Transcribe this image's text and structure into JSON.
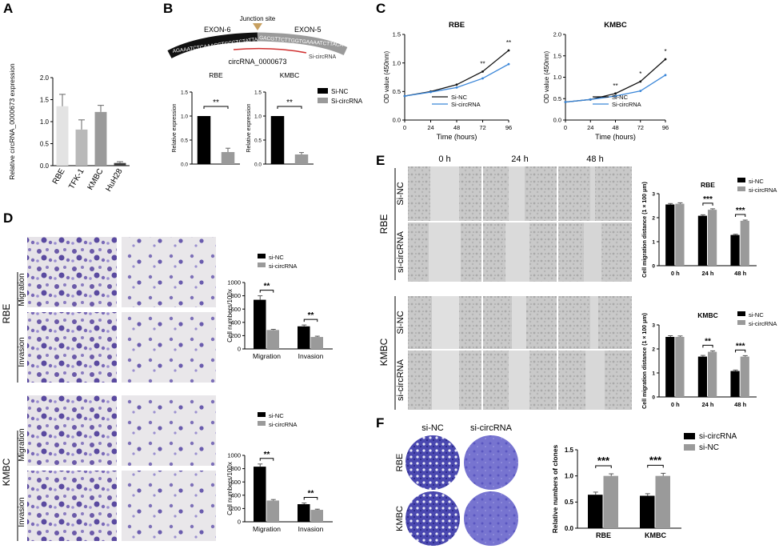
{
  "panel_labels": [
    "A",
    "B",
    "C",
    "D",
    "E",
    "F"
  ],
  "chart_data": [
    {
      "id": "A",
      "type": "bar",
      "categories": [
        "RBE",
        "TFK-1",
        "KMBC",
        "HuH28"
      ],
      "values": [
        1.35,
        0.82,
        1.22,
        0.06
      ],
      "errors": [
        0.27,
        0.22,
        0.15,
        0.03
      ],
      "ylabel": "Relative circRNA_0000673 expression",
      "ylim": [
        0,
        2.0
      ],
      "yticks": [
        "0.0",
        "0.5",
        "1.0",
        "1.5",
        "2.0"
      ],
      "colors": [
        "#e3e3e3",
        "#b9b9b9",
        "#9a9a9a",
        "#3a3a3a"
      ]
    },
    {
      "id": "B-RBE",
      "type": "bar",
      "title": "RBE",
      "categories": [
        "Si-NC",
        "Si-circRNA"
      ],
      "values": [
        1.0,
        0.25
      ],
      "errors": [
        0,
        0.08
      ],
      "ylabel": "Relative expression",
      "ylim": [
        0,
        1.5
      ],
      "yticks": [
        "0.0",
        "0.5",
        "1.0",
        "1.5"
      ],
      "sig": "**"
    },
    {
      "id": "B-KMBC",
      "type": "bar",
      "title": "KMBC",
      "categories": [
        "Si-NC",
        "Si-circRNA"
      ],
      "values": [
        1.0,
        0.2
      ],
      "errors": [
        0,
        0.04
      ],
      "ylabel": "Relative expression",
      "ylim": [
        0,
        1.5
      ],
      "yticks": [
        "0.0",
        "0.5",
        "1.0",
        "1.5"
      ],
      "sig": "**"
    },
    {
      "id": "C-RBE",
      "type": "line",
      "title": "RBE",
      "x": [
        0,
        24,
        48,
        72,
        96
      ],
      "series": [
        {
          "name": "Si-NC",
          "values": [
            0.42,
            0.5,
            0.62,
            0.85,
            1.22
          ],
          "color": "#111111"
        },
        {
          "name": "Si-circRNA",
          "values": [
            0.42,
            0.49,
            0.57,
            0.73,
            0.98
          ],
          "color": "#3a86d8"
        }
      ],
      "stars": [
        "",
        "",
        "",
        "**",
        "**"
      ],
      "xlabel": "Time (hours)",
      "ylabel": "OD value (450nm)",
      "ylim": [
        0,
        1.5
      ],
      "yticks": [
        "0.0",
        "0.5",
        "1.0",
        "1.5"
      ],
      "xticks": [
        "0",
        "24",
        "48",
        "72",
        "96"
      ]
    },
    {
      "id": "C-KMBC",
      "type": "line",
      "title": "KMBC",
      "x": [
        0,
        24,
        48,
        72,
        96
      ],
      "series": [
        {
          "name": "Si-NC",
          "values": [
            0.42,
            0.48,
            0.62,
            0.9,
            1.42
          ],
          "color": "#111111"
        },
        {
          "name": "Si-circRNA",
          "values": [
            0.42,
            0.48,
            0.56,
            0.68,
            1.05
          ],
          "color": "#3a86d8"
        }
      ],
      "stars": [
        "",
        "",
        "**",
        "*",
        "*"
      ],
      "xlabel": "Time (hours)",
      "ylabel": "OD value (450nm)",
      "ylim": [
        0,
        2.0
      ],
      "yticks": [
        "0.0",
        "0.5",
        "1.0",
        "1.5",
        "2.0"
      ],
      "xticks": [
        "0",
        "24",
        "48",
        "72",
        "96"
      ]
    },
    {
      "id": "D-RBE",
      "type": "bar",
      "categories": [
        "Migration",
        "Invasion"
      ],
      "series": [
        {
          "name": "si-NC",
          "values": [
            740,
            340
          ],
          "errors": [
            60,
            20
          ],
          "color": "#000000"
        },
        {
          "name": "si-circRNA",
          "values": [
            285,
            180
          ],
          "errors": [
            10,
            12
          ],
          "color": "#9a9a9a"
        }
      ],
      "stars": [
        "**",
        "**"
      ],
      "ylabel": "Cell numbers/100x",
      "ylim": [
        0,
        1000
      ],
      "yticks": [
        "0",
        "200",
        "400",
        "600",
        "800",
        "1000"
      ]
    },
    {
      "id": "D-KMBC",
      "type": "bar",
      "categories": [
        "Migration",
        "Invasion"
      ],
      "series": [
        {
          "name": "si-NC",
          "values": [
            830,
            265
          ],
          "errors": [
            40,
            18
          ],
          "color": "#000000"
        },
        {
          "name": "si-circRNA",
          "values": [
            320,
            180
          ],
          "errors": [
            15,
            10
          ],
          "color": "#9a9a9a"
        }
      ],
      "stars": [
        "**",
        "**"
      ],
      "ylabel": "Cell numbers/100x",
      "ylim": [
        0,
        1000
      ],
      "yticks": [
        "0",
        "200",
        "400",
        "600",
        "800",
        "1000"
      ]
    },
    {
      "id": "E-RBE",
      "type": "bar",
      "title": "RBE",
      "categories": [
        "0 h",
        "24 h",
        "48 h"
      ],
      "series": [
        {
          "name": "si-NC",
          "values": [
            2.55,
            2.08,
            1.28
          ],
          "errors": [
            0.04,
            0.04,
            0.03
          ],
          "color": "#000000"
        },
        {
          "name": "si-circRNA",
          "values": [
            2.58,
            2.33,
            1.87
          ],
          "errors": [
            0.04,
            0.04,
            0.03
          ],
          "color": "#9a9a9a"
        }
      ],
      "stars": [
        "",
        "***",
        "***"
      ],
      "ylabel": "Cell migration distance (1 × 100 μm)",
      "ylim": [
        0,
        3
      ],
      "yticks": [
        "0",
        "1",
        "2",
        "3"
      ]
    },
    {
      "id": "E-KMBC",
      "type": "bar",
      "title": "KMBC",
      "categories": [
        "0 h",
        "24 h",
        "48 h"
      ],
      "series": [
        {
          "name": "si-NC",
          "values": [
            2.5,
            1.68,
            1.08
          ],
          "errors": [
            0.05,
            0.05,
            0.04
          ],
          "color": "#000000"
        },
        {
          "name": "si-circRNA",
          "values": [
            2.5,
            1.88,
            1.68
          ],
          "errors": [
            0.04,
            0.04,
            0.04
          ],
          "color": "#9a9a9a"
        }
      ],
      "stars": [
        "",
        "**",
        "***"
      ],
      "ylabel": "Cell migration distance (1 × 100 μm)",
      "ylim": [
        0,
        3
      ],
      "yticks": [
        "0",
        "1",
        "2",
        "3"
      ]
    },
    {
      "id": "F",
      "type": "bar",
      "categories": [
        "RBE",
        "KMBC"
      ],
      "series": [
        {
          "name": "si-circRNA",
          "values": [
            0.64,
            0.62
          ],
          "errors": [
            0.05,
            0.04
          ],
          "color": "#000000"
        },
        {
          "name": "si-NC",
          "values": [
            1.0,
            1.0
          ],
          "errors": [
            0.04,
            0.05
          ],
          "color": "#9a9a9a"
        }
      ],
      "stars": [
        "***",
        "***"
      ],
      "ylabel": "Relative numbers of clones",
      "ylim": [
        0,
        1.5
      ],
      "yticks": [
        "0.0",
        "0.5",
        "1.0",
        "1.5"
      ]
    }
  ],
  "panel_b": {
    "junction_label": "Junction site",
    "exon6_label": "EXON-6",
    "exon5_label": "EXON-5",
    "seq_black": "AGAAATCTCAAACCTCCCTCTATTA",
    "seq_grey": "GACGTTCTTGGTGAAAATCTTACA",
    "circ_name": "circRNA_0000673",
    "sirna_label": "Si-circRNA",
    "legend": [
      "Si-NC",
      "Si-circRNA"
    ]
  },
  "panel_d": {
    "row_groups": [
      "RBE",
      "KMBC"
    ],
    "row_labels": [
      "Migration",
      "Invasion",
      "Migration",
      "Invasion"
    ]
  },
  "panel_e": {
    "col_headers": [
      "0 h",
      "24 h",
      "48 h"
    ],
    "row_groups": [
      "RBE",
      "KMBC"
    ],
    "row_labels": [
      "Si-NC",
      "si-circRNA",
      "Si-NC",
      "si-circRNA"
    ]
  },
  "panel_f": {
    "col_headers": [
      "si-NC",
      "si-circRNA"
    ],
    "row_labels": [
      "RBE",
      "KMBC"
    ]
  }
}
